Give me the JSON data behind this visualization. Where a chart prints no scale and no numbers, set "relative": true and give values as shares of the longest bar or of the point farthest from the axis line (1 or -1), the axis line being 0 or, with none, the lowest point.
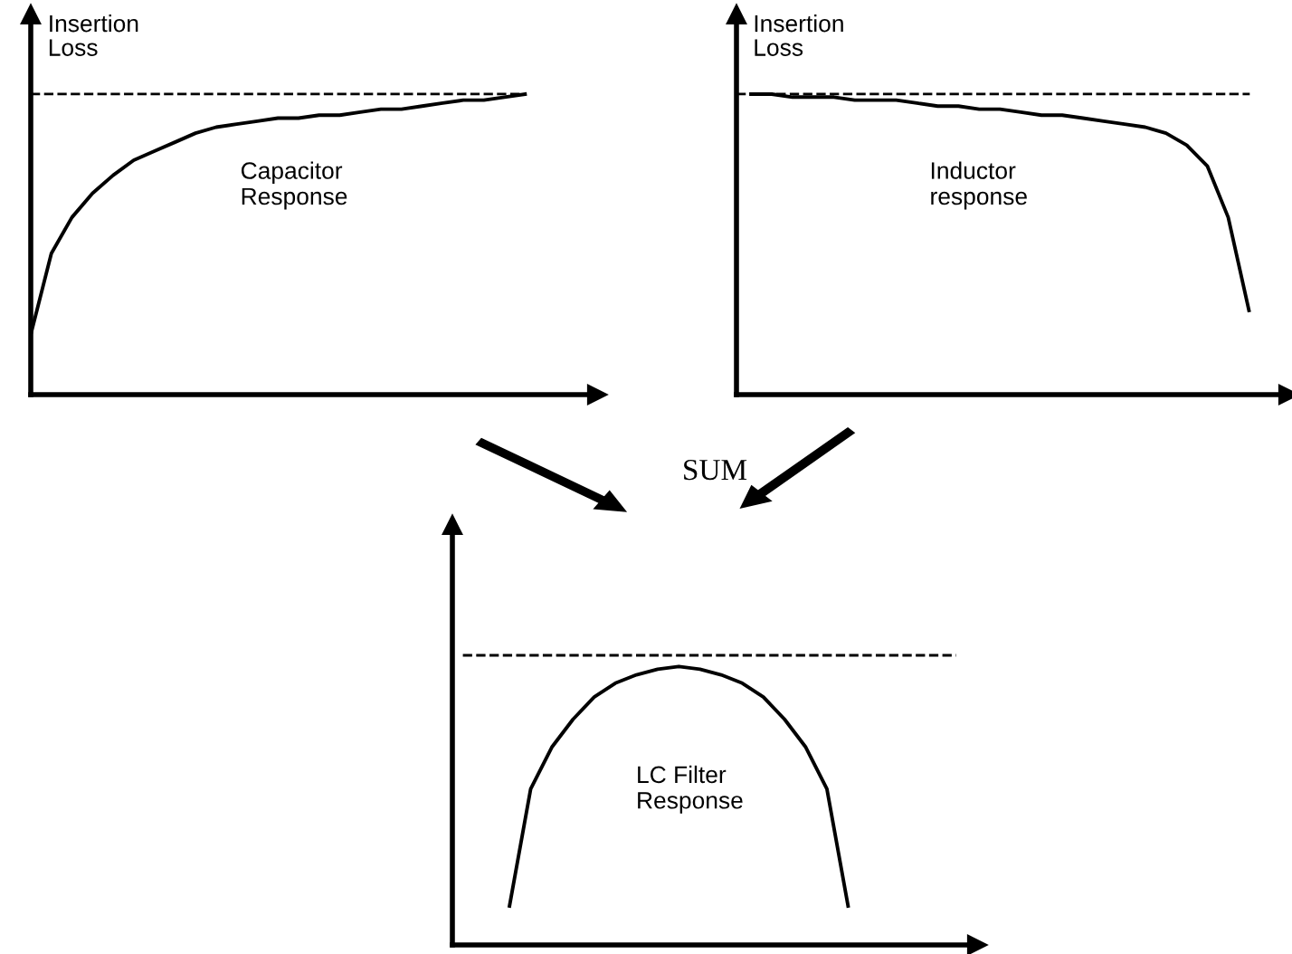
{
  "chart_data": [
    {
      "type": "line",
      "relative": true,
      "ylabel": "Insertion\nLoss",
      "annotations": [
        "Capacitor\nResponse"
      ],
      "marker": "none",
      "line_style": "solid",
      "categories": [
        null,
        null,
        null,
        null,
        null,
        null,
        null,
        null,
        null,
        null,
        null,
        null,
        null,
        null,
        null,
        null,
        null,
        null,
        null,
        null,
        null,
        null,
        null,
        null,
        null
      ],
      "series": [
        {
          "color": "#000000",
          "values": [
            0.2,
            0.47,
            0.59,
            0.67,
            0.73,
            0.78,
            0.81,
            0.84,
            0.87,
            0.89,
            0.9,
            0.91,
            0.92,
            0.92,
            0.93,
            0.93,
            0.94,
            0.95,
            0.95,
            0.96,
            0.97,
            0.98,
            0.98,
            0.99,
            1.0
          ]
        }
      ],
      "ref_lines": [
        {
          "axis": "y",
          "value": 1.0,
          "color": "#000000",
          "line_style": "dashed"
        }
      ]
    },
    {
      "type": "line",
      "relative": true,
      "ylabel": "Insertion\nLoss",
      "annotations": [
        "Inductor\nresponse"
      ],
      "marker": "none",
      "line_style": "solid",
      "categories": [
        null,
        null,
        null,
        null,
        null,
        null,
        null,
        null,
        null,
        null,
        null,
        null,
        null,
        null,
        null,
        null,
        null,
        null,
        null,
        null,
        null,
        null,
        null,
        null,
        null
      ],
      "series": [
        {
          "color": "#000000",
          "values": [
            1.0,
            1.0,
            0.99,
            0.99,
            0.99,
            0.98,
            0.98,
            0.98,
            0.97,
            0.96,
            0.96,
            0.95,
            0.95,
            0.94,
            0.93,
            0.93,
            0.92,
            0.91,
            0.9,
            0.89,
            0.87,
            0.83,
            0.76,
            0.59,
            0.28
          ]
        }
      ],
      "ref_lines": [
        {
          "axis": "y",
          "value": 1.0,
          "color": "#000000",
          "line_style": "dashed"
        }
      ]
    },
    {
      "type": "line",
      "relative": true,
      "title": "SUM",
      "annotations": [
        "LC Filter\nResponse"
      ],
      "marker": "none",
      "line_style": "solid",
      "categories": [
        null,
        null,
        null,
        null,
        null,
        null,
        null,
        null,
        null,
        null,
        null,
        null,
        null,
        null,
        null,
        null,
        null
      ],
      "series": [
        {
          "color": "#000000",
          "values": [
            0.14,
            0.56,
            0.71,
            0.81,
            0.89,
            0.94,
            0.97,
            0.99,
            1.0,
            0.99,
            0.97,
            0.94,
            0.89,
            0.81,
            0.71,
            0.56,
            0.14
          ]
        }
      ],
      "ref_lines": [
        {
          "axis": "y",
          "value": 1.04,
          "color": "#000000",
          "line_style": "dashed"
        }
      ]
    }
  ]
}
